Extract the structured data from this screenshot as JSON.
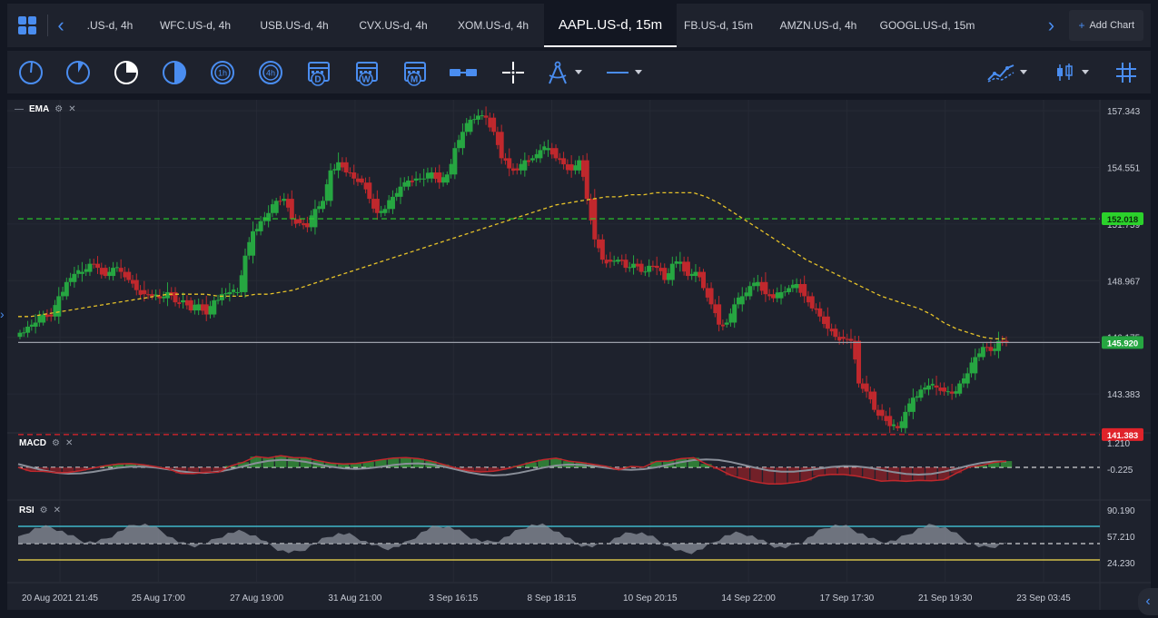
{
  "tabs": {
    "items": [
      {
        "label": ".US-d, 4h",
        "width": 80,
        "active": false
      },
      {
        "label": "WFC.US-d, 4h",
        "width": 108,
        "active": false
      },
      {
        "label": "USB.US-d, 4h",
        "width": 110,
        "active": false
      },
      {
        "label": "CVX.US-d, 4h",
        "width": 108,
        "active": false
      },
      {
        "label": "XOM.US-d, 4h",
        "width": 112,
        "active": false
      },
      {
        "label": "AAPL.US-d, 15m",
        "width": 146,
        "active": true
      },
      {
        "label": "FB.US-d, 15m",
        "width": 92,
        "active": false
      },
      {
        "label": "AMZN.US-d, 4h",
        "width": 128,
        "active": false
      },
      {
        "label": "GOOGL.US-d, 15m",
        "width": 112,
        "active": false
      }
    ],
    "add_chart_label": "Add Chart"
  },
  "toolbar": {
    "timeframe_icons": [
      "tf-1m-icon",
      "tf-5m-icon",
      "tf-15m-icon",
      "tf-30m-icon",
      "tf-1h-icon",
      "tf-4h-icon"
    ],
    "timeframe_labels": [
      "",
      "",
      "",
      "",
      "1h",
      "4h"
    ],
    "period_labels": [
      "D",
      "W",
      "M"
    ]
  },
  "chart": {
    "indicator_main": "EMA",
    "indicator_macd": "MACD",
    "indicator_rsi": "RSI",
    "colors": {
      "bg": "#1e222d",
      "bull": "#26a641",
      "bear": "#c0282d",
      "ema": "#e6c229",
      "green_line": "#2bd12b",
      "red_line": "#e0232a",
      "gray_line": "#9a9ea8",
      "rsi_upper": "#3fb6c9",
      "rsi_lower": "#d4c04a"
    }
  },
  "chart_data": {
    "type": "candlestick",
    "price_axis": [
      "157.343",
      "154.551",
      "151.759",
      "148.967",
      "146.175",
      "143.383"
    ],
    "price_range": [
      141.6,
      157.7
    ],
    "levels": [
      {
        "name": "resistance",
        "value": 152.018,
        "label": "152.018",
        "color": "#2bd12b"
      },
      {
        "name": "current",
        "value": 145.92,
        "label": "145.920",
        "color": "#26a641"
      },
      {
        "name": "support",
        "value": 141.383,
        "label": "141.383",
        "color": "#e0232a"
      }
    ],
    "time_axis": [
      "20 Aug 2021 21:45",
      "25 Aug 17:00",
      "27 Aug 19:00",
      "31 Aug 21:00",
      "3 Sep 16:15",
      "8 Sep 18:15",
      "10 Sep 20:15",
      "14 Sep 22:00",
      "17 Sep 17:30",
      "21 Sep 19:30",
      "23 Sep 03:45"
    ],
    "close_path": [
      146.4,
      146.7,
      146.9,
      147.3,
      147.2,
      148.2,
      148.9,
      149.3,
      149.4,
      149.8,
      149.6,
      149.2,
      149.6,
      149.4,
      149.0,
      148.5,
      148.3,
      148.2,
      148.1,
      148.4,
      147.9,
      148.0,
      147.5,
      147.8,
      147.3,
      148.0,
      148.3,
      148.4,
      148.4,
      150.2,
      151.4,
      151.9,
      152.3,
      152.9,
      153.0,
      152.0,
      151.8,
      151.6,
      152.5,
      152.9,
      154.4,
      154.8,
      154.3,
      154.0,
      153.8,
      153.0,
      152.3,
      152.5,
      153.1,
      153.6,
      153.9,
      154.0,
      154.0,
      154.3,
      153.8,
      154.2,
      155.5,
      156.3,
      156.9,
      157.1,
      157.0,
      156.3,
      155.0,
      154.5,
      154.4,
      154.9,
      155.0,
      155.4,
      155.5,
      155.0,
      154.7,
      154.4,
      154.9,
      153.0,
      151.0,
      150.0,
      149.9,
      150.0,
      149.6,
      149.8,
      149.4,
      149.7,
      149.6,
      149.0,
      149.8,
      149.9,
      149.2,
      149.4,
      148.6,
      147.8,
      146.8,
      146.9,
      147.8,
      148.2,
      148.7,
      148.9,
      148.3,
      148.1,
      148.4,
      148.6,
      148.8,
      148.2,
      147.6,
      147.2,
      146.6,
      146.2,
      146.1,
      146.0,
      143.9,
      143.5,
      142.6,
      142.3,
      141.8,
      141.7,
      142.5,
      143.2,
      143.6,
      143.8,
      143.7,
      143.5,
      143.4,
      143.9,
      144.4,
      145.2,
      145.7,
      145.5,
      146.0,
      145.9
    ],
    "ema_path": [
      147.2,
      147.2,
      147.3,
      147.4,
      147.5,
      147.6,
      147.7,
      147.8,
      147.9,
      148.0,
      148.1,
      148.2,
      148.3,
      148.3,
      148.3,
      148.3,
      148.2,
      148.2,
      148.2,
      148.3,
      148.3,
      148.4,
      148.5,
      148.7,
      148.9,
      149.1,
      149.3,
      149.5,
      149.7,
      149.9,
      150.1,
      150.3,
      150.5,
      150.7,
      150.9,
      151.1,
      151.3,
      151.5,
      151.7,
      151.9,
      152.1,
      152.3,
      152.5,
      152.7,
      152.8,
      152.9,
      153.0,
      153.1,
      153.1,
      153.2,
      153.2,
      153.3,
      153.3,
      153.3,
      153.3,
      153.1,
      152.8,
      152.4,
      152.0,
      151.6,
      151.2,
      150.8,
      150.4,
      150.0,
      149.7,
      149.4,
      149.1,
      148.8,
      148.5,
      148.2,
      148.0,
      147.8,
      147.6,
      147.3,
      146.9,
      146.6,
      146.4,
      146.2,
      146.1,
      146.1
    ],
    "macd_axis": [
      "1.210",
      "-0.225"
    ],
    "rsi_axis": [
      "90.190",
      "57.210",
      "24.230"
    ]
  }
}
